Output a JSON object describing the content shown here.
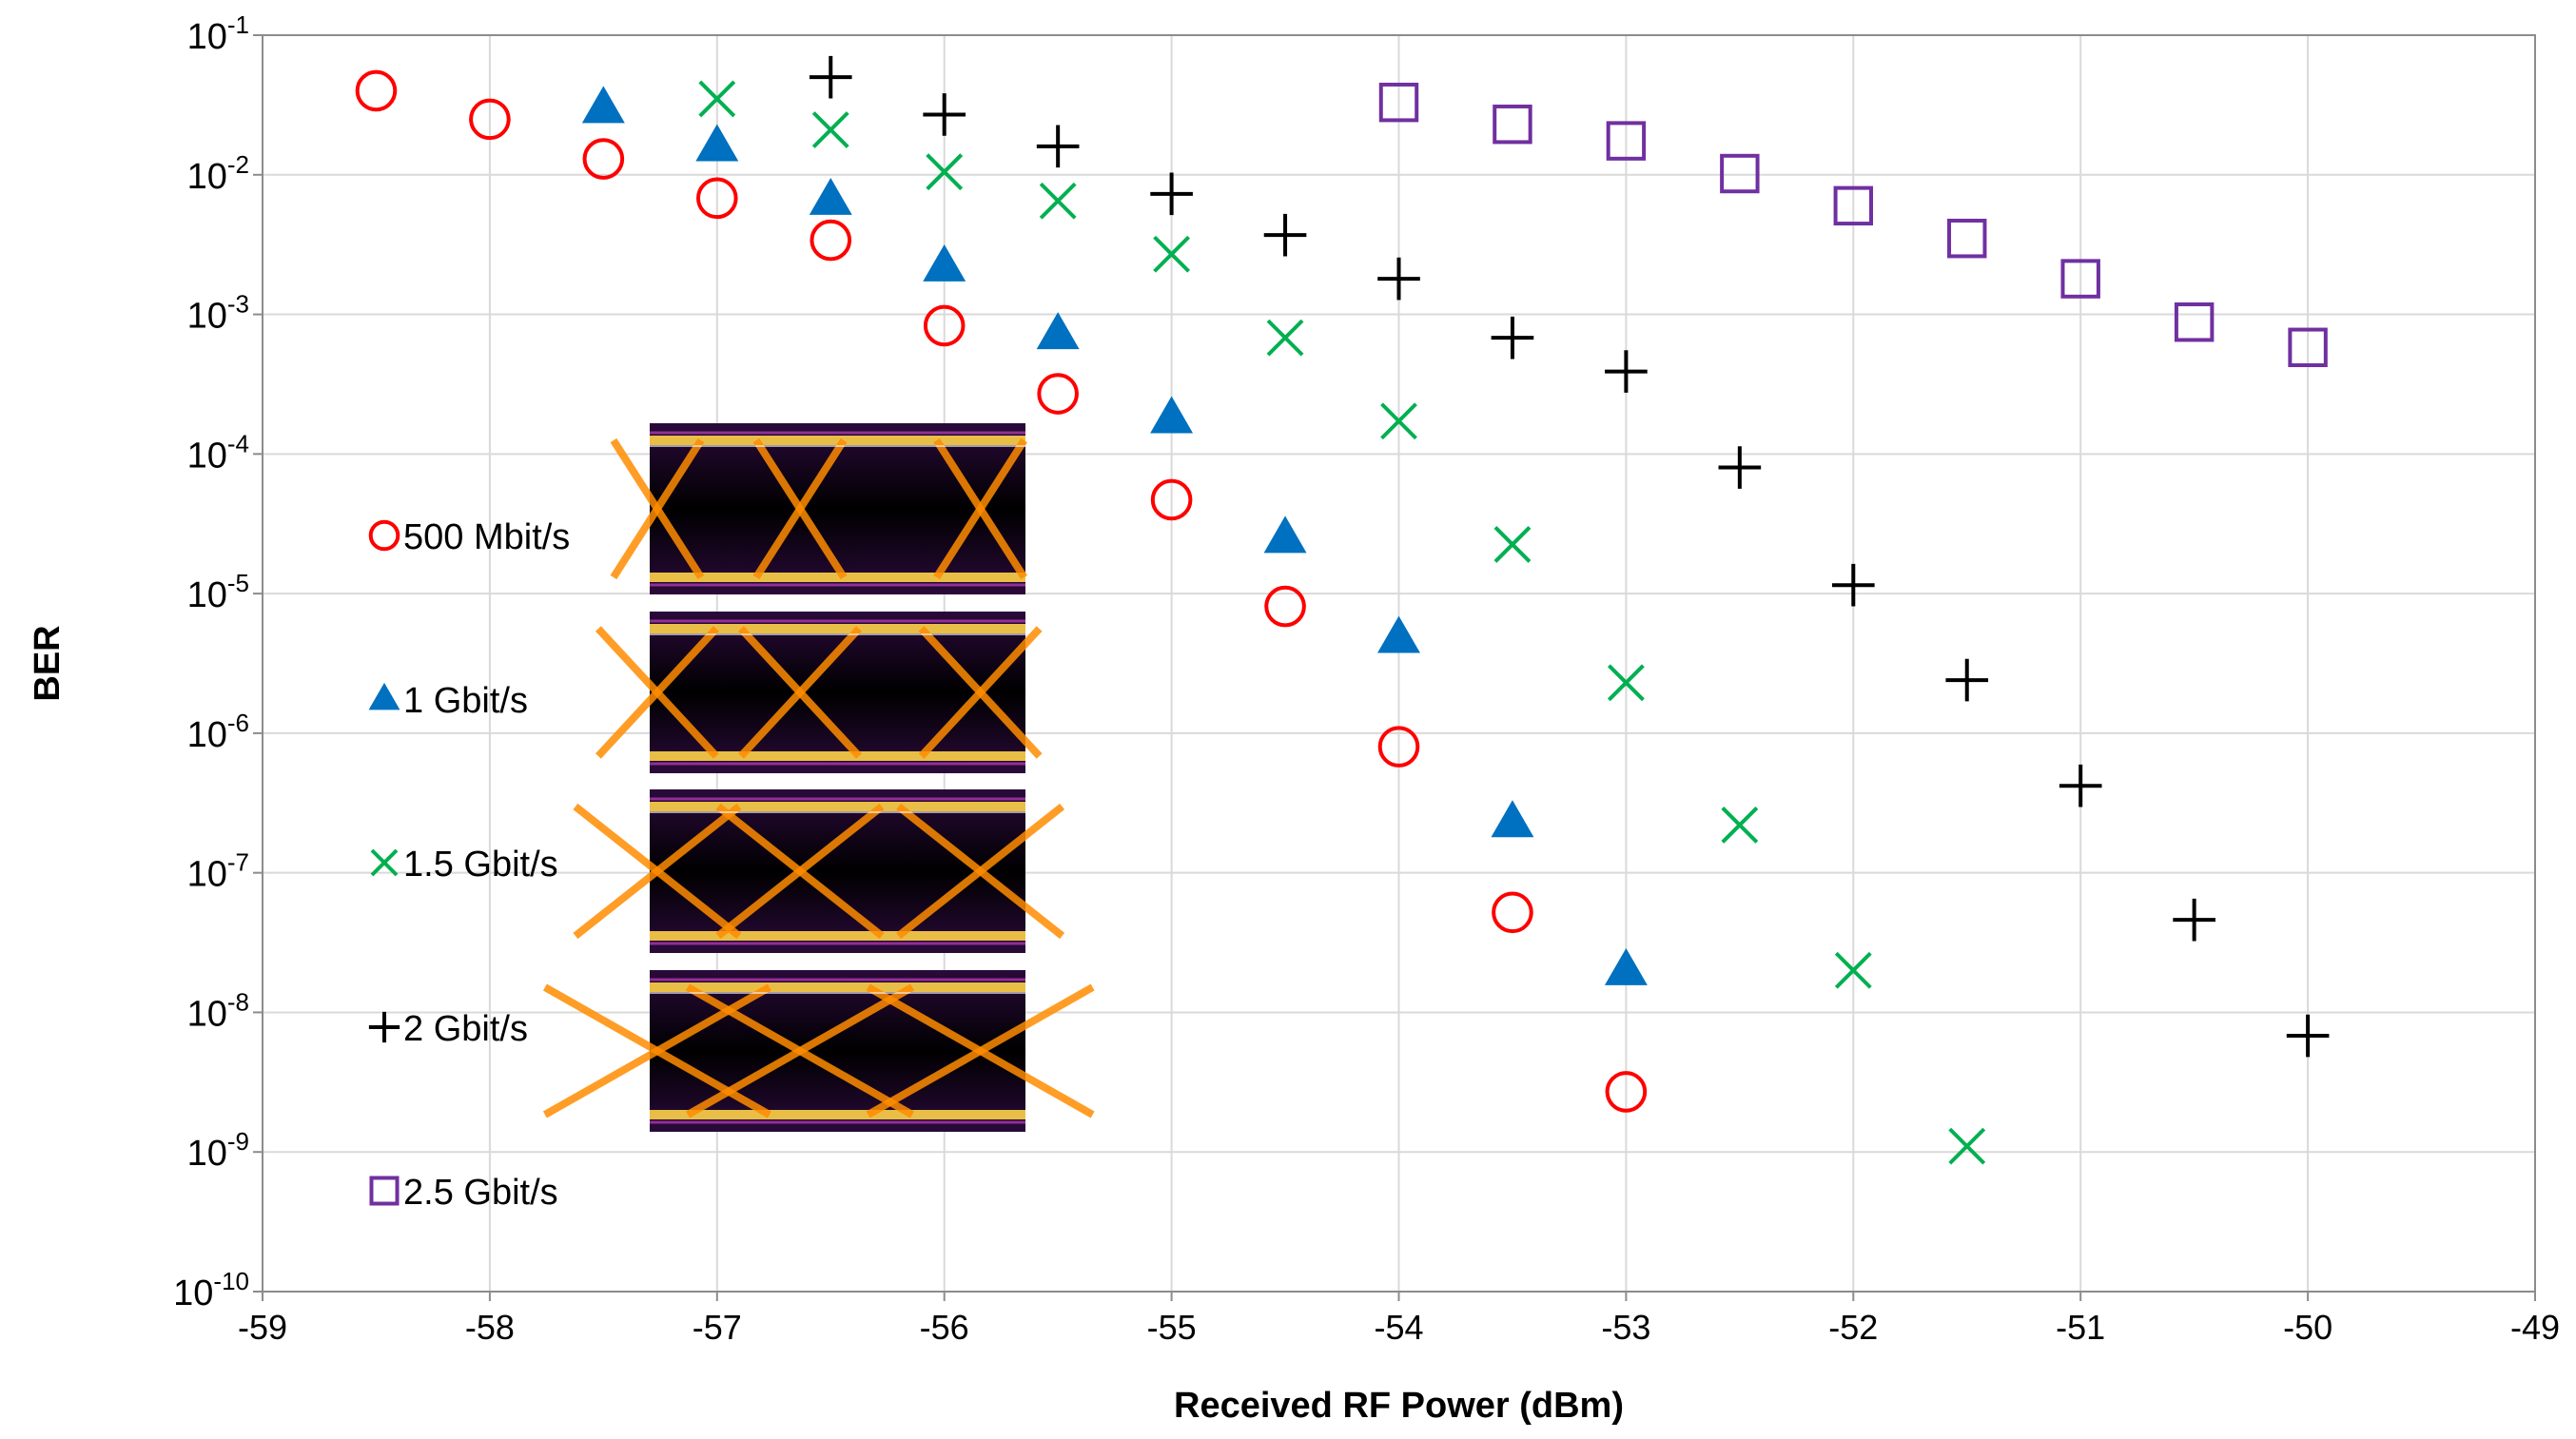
{
  "chart_data": {
    "type": "scatter",
    "title": "",
    "xlabel": "Received RF Power (dBm)",
    "ylabel": "BER",
    "xlim": [
      -59,
      -49
    ],
    "ylim_exp": [
      -10,
      -1
    ],
    "y_scale": "log",
    "grid": true,
    "x_ticks": [
      "-59",
      "-58",
      "-57",
      "-56",
      "-55",
      "-54",
      "-53",
      "-52",
      "-51",
      "-50",
      "-49"
    ],
    "y_tick_exponents": [
      "-1",
      "-2",
      "-3",
      "-4",
      "-5",
      "-6",
      "-7",
      "-8",
      "-9",
      "-10"
    ],
    "y_tick_base": "10",
    "legend_position": "left-inside",
    "series": [
      {
        "name": "500 Mbit/s",
        "marker": "circle",
        "color": "#ff0000",
        "x": [
          -58.5,
          -58,
          -57.5,
          -57,
          -56.5,
          -56,
          -55.5,
          -55,
          -54.5,
          -54,
          -53.5,
          -53
        ],
        "y": [
          0.04,
          0.025,
          0.013,
          0.0068,
          0.0034,
          0.00083,
          0.00027,
          4.7e-05,
          8.1e-06,
          8e-07,
          5.2e-08,
          2.7e-09
        ]
      },
      {
        "name": "1 Gbit/s",
        "marker": "triangle",
        "color": "#0070c0",
        "x": [
          -57.5,
          -57,
          -56.5,
          -56,
          -55.5,
          -55,
          -54.5,
          -54,
          -53.5,
          -53
        ],
        "y": [
          0.03,
          0.016,
          0.0066,
          0.0022,
          0.00072,
          0.00018,
          2.5e-05,
          4.8e-06,
          2.3e-07,
          2e-08
        ]
      },
      {
        "name": "1.5 Gbit/s",
        "marker": "x",
        "color": "#00b050",
        "x": [
          -57,
          -56.5,
          -56,
          -55.5,
          -55,
          -54.5,
          -54,
          -53.5,
          -53,
          -52.5,
          -52,
          -51.5
        ],
        "y": [
          0.035,
          0.021,
          0.0105,
          0.0065,
          0.0027,
          0.00068,
          0.000172,
          2.25e-05,
          2.3e-06,
          2.2e-07,
          2e-08,
          1.1e-09
        ]
      },
      {
        "name": "2 Gbit/s",
        "marker": "plus",
        "color": "#000000",
        "x": [
          -56.5,
          -56,
          -55.5,
          -55,
          -54.5,
          -54,
          -53.5,
          -53,
          -52.5,
          -52,
          -51.5,
          -51,
          -50.5,
          -50
        ],
        "y": [
          0.05,
          0.027,
          0.016,
          0.0073,
          0.0037,
          0.0018,
          0.00068,
          0.00039,
          8e-05,
          1.15e-05,
          2.4e-06,
          4.2e-07,
          4.6e-08,
          6.8e-09
        ]
      },
      {
        "name": "2.5 Gbit/s",
        "marker": "square",
        "color": "#7030a0",
        "x": [
          -54,
          -53.5,
          -53,
          -52.5,
          -52,
          -51.5,
          -51,
          -50.5,
          -50
        ],
        "y": [
          0.033,
          0.023,
          0.0175,
          0.0102,
          0.006,
          0.0035,
          0.0018,
          0.00088,
          0.00058
        ]
      }
    ]
  },
  "eye_diagrams": [
    {
      "name": "eye-diagram-500mbit",
      "shape": "wide",
      "color": "#ff8c00"
    },
    {
      "name": "eye-diagram-1gbit",
      "shape": "medium",
      "color": "#ff8c00"
    },
    {
      "name": "eye-diagram-1-5gbit",
      "shape": "narrow",
      "color": "#ff8c00"
    },
    {
      "name": "eye-diagram-2gbit",
      "shape": "narrowest",
      "color": "#ff8c00"
    }
  ]
}
